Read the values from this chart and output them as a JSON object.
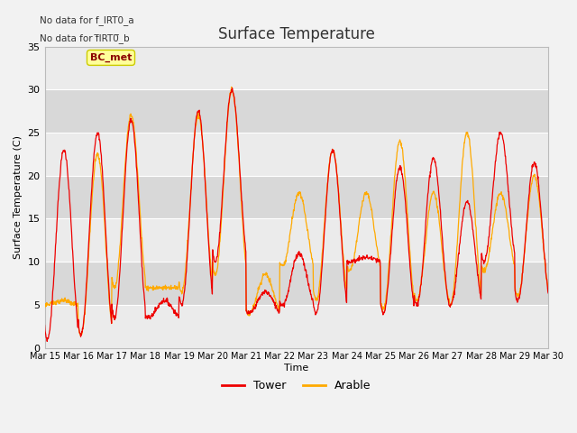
{
  "title": "Surface Temperature",
  "ylabel": "Surface Temperature (C)",
  "xlabel": "Time",
  "annotation_line1": "No data for f_IRT0_a",
  "annotation_line2": "No data for f̅IRT0̅_b",
  "bc_met_label": "BC_met",
  "legend_entries": [
    "Tower",
    "Arable"
  ],
  "tower_color": "#ee0000",
  "arable_color": "#ffaa00",
  "x_tick_labels": [
    "Mar 15",
    "Mar 16",
    "Mar 17",
    "Mar 18",
    "Mar 19",
    "Mar 20",
    "Mar 21",
    "Mar 22",
    "Mar 23",
    "Mar 24",
    "Mar 25",
    "Mar 26",
    "Mar 27",
    "Mar 28",
    "Mar 29",
    "Mar 30"
  ],
  "ylim": [
    0,
    35
  ],
  "yticks": [
    0,
    5,
    10,
    15,
    20,
    25,
    30,
    35
  ],
  "plot_bg_light": "#ebebeb",
  "plot_bg_dark": "#d8d8d8",
  "grid_color": "#ffffff",
  "n_days": 15,
  "points_per_day": 96,
  "daily_max_tower": [
    23.0,
    25.0,
    26.5,
    5.5,
    27.5,
    30.0,
    6.5,
    11.0,
    23.0,
    10.5,
    21.0,
    22.0,
    17.0,
    25.0,
    21.5,
    6.0
  ],
  "daily_min_tower": [
    1.0,
    1.5,
    3.5,
    3.5,
    5.0,
    10.0,
    4.0,
    5.0,
    4.0,
    10.0,
    4.0,
    5.0,
    5.0,
    10.0,
    5.5,
    6.0
  ],
  "daily_max_arable": [
    5.5,
    22.5,
    27.0,
    7.0,
    27.0,
    30.0,
    8.5,
    18.0,
    23.0,
    18.0,
    24.0,
    18.0,
    25.0,
    18.0,
    20.0,
    10.5
  ],
  "daily_min_arable": [
    5.0,
    1.5,
    7.0,
    7.0,
    6.5,
    8.5,
    4.0,
    9.5,
    5.5,
    9.0,
    4.5,
    5.5,
    5.0,
    9.0,
    6.0,
    10.0
  ],
  "figsize": [
    6.4,
    4.8
  ],
  "dpi": 100
}
